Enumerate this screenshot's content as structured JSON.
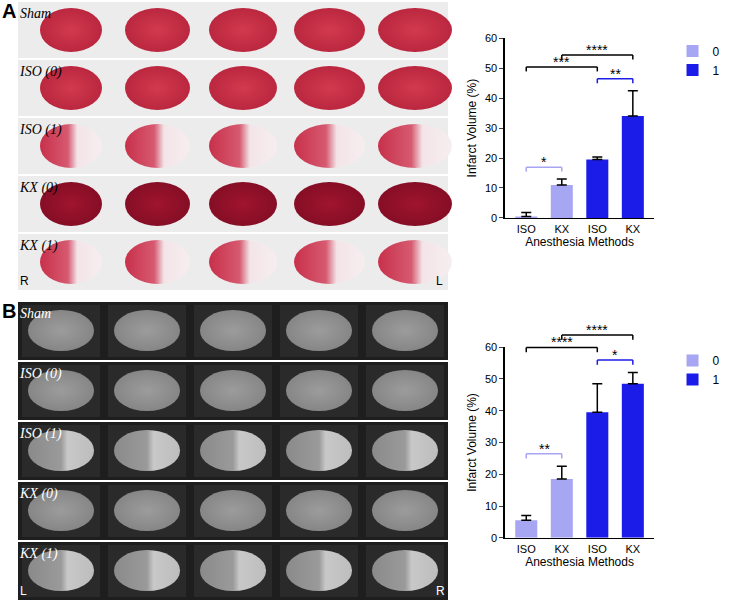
{
  "panels": [
    {
      "label": "A",
      "image_rows": [
        "Sham",
        "ISO (0)",
        "ISO (1)",
        "KX (0)",
        "KX (1)"
      ],
      "orientation_labels": [
        "R",
        "L"
      ]
    },
    {
      "label": "B",
      "image_rows": [
        "Sham",
        "ISO (0)",
        "ISO (1)",
        "KX (0)",
        "KX (1)"
      ],
      "orientation_labels": [
        "L",
        "R"
      ]
    }
  ],
  "chart_data": [
    {
      "type": "bar",
      "x_label": "Anesthesia Methods",
      "y_label": "Infarct Volume (%)",
      "categories": [
        "ISO",
        "KX",
        "ISO",
        "KX"
      ],
      "series": [
        {
          "name": "0",
          "color": "#a6a6f2",
          "values": [
            0.5,
            11,
            null,
            null
          ],
          "errors": [
            1.3,
            2,
            null,
            null
          ]
        },
        {
          "name": "1",
          "color": "#1c1ce8",
          "values": [
            null,
            null,
            19.5,
            34
          ],
          "errors": [
            null,
            null,
            0.8,
            8.5
          ]
        }
      ],
      "ylim": [
        0,
        60
      ],
      "yticks": [
        0,
        10,
        20,
        30,
        40,
        50,
        60
      ],
      "legend": "right",
      "significance": [
        {
          "from": 0,
          "to": 1,
          "text": "*",
          "color": "#a6a6f2"
        },
        {
          "from": 2,
          "to": 3,
          "text": "**",
          "color": "#1c1ce8"
        },
        {
          "from": 0,
          "to": 2,
          "text": "***",
          "color": "#000000"
        },
        {
          "from": 1,
          "to": 3,
          "text": "****",
          "color": "#000000"
        }
      ]
    },
    {
      "type": "bar",
      "x_label": "Anesthesia Methods",
      "y_label": "Infarct Volume (%)",
      "categories": [
        "ISO",
        "KX",
        "ISO",
        "KX"
      ],
      "series": [
        {
          "name": "0",
          "color": "#a6a6f2",
          "values": [
            5.5,
            18.5,
            null,
            null
          ],
          "errors": [
            1.5,
            4,
            null,
            null
          ]
        },
        {
          "name": "1",
          "color": "#1c1ce8",
          "values": [
            null,
            null,
            39.5,
            48.5
          ],
          "errors": [
            null,
            null,
            9,
            3.5
          ]
        }
      ],
      "ylim": [
        0,
        60
      ],
      "yticks": [
        0,
        10,
        20,
        30,
        40,
        50,
        60
      ],
      "legend": "right",
      "significance": [
        {
          "from": 0,
          "to": 1,
          "text": "**",
          "color": "#a6a6f2"
        },
        {
          "from": 2,
          "to": 3,
          "text": "*",
          "color": "#1c1ce8"
        },
        {
          "from": 0,
          "to": 2,
          "text": "****",
          "color": "#000000"
        },
        {
          "from": 1,
          "to": 3,
          "text": "****",
          "color": "#000000"
        }
      ]
    }
  ]
}
